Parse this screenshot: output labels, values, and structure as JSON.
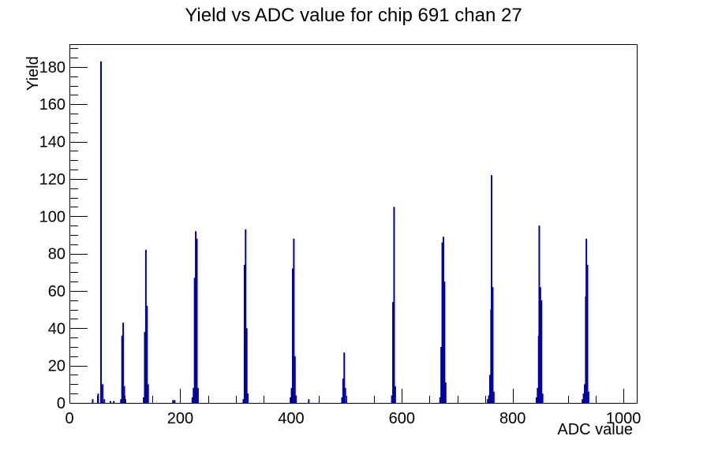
{
  "window": {
    "background": "#ffffff"
  },
  "chart_data": {
    "type": "bar",
    "title": "Yield vs ADC value for chip 691 chan 27",
    "xlabel": "ADC value",
    "ylabel": "Yield",
    "xlim": [
      0,
      1024
    ],
    "ylim": [
      0,
      192.2
    ],
    "x_major_ticks": [
      0,
      200,
      400,
      600,
      800,
      1000
    ],
    "x_minor_step": 50,
    "y_major_ticks": [
      0,
      20,
      40,
      60,
      80,
      100,
      120,
      140,
      160,
      180
    ],
    "y_minor_step": 5,
    "grid": "off",
    "legend": "none",
    "bar_color": "#0000a0",
    "axis_color": "#000000",
    "bins": [
      [
        42,
        2
      ],
      [
        52,
        5
      ],
      [
        57,
        183
      ],
      [
        60,
        10
      ],
      [
        63,
        2
      ],
      [
        74,
        1
      ],
      [
        80,
        1
      ],
      [
        93,
        2
      ],
      [
        95,
        36
      ],
      [
        97,
        43
      ],
      [
        99,
        9
      ],
      [
        101,
        2
      ],
      [
        134,
        3
      ],
      [
        136,
        38
      ],
      [
        138,
        82
      ],
      [
        140,
        52
      ],
      [
        142,
        10
      ],
      [
        187,
        1.5
      ],
      [
        190,
        1.5
      ],
      [
        222,
        3
      ],
      [
        224,
        8
      ],
      [
        226,
        67
      ],
      [
        228,
        92
      ],
      [
        230,
        88
      ],
      [
        232,
        8
      ],
      [
        314,
        2
      ],
      [
        316,
        74
      ],
      [
        318,
        93
      ],
      [
        320,
        40
      ],
      [
        322,
        5
      ],
      [
        399,
        3
      ],
      [
        401,
        8
      ],
      [
        403,
        72
      ],
      [
        405,
        88
      ],
      [
        407,
        25
      ],
      [
        409,
        4
      ],
      [
        432,
        2
      ],
      [
        492,
        3
      ],
      [
        494,
        13
      ],
      [
        496,
        27
      ],
      [
        498,
        8
      ],
      [
        582,
        4
      ],
      [
        584,
        54
      ],
      [
        586,
        105
      ],
      [
        588,
        9
      ],
      [
        669,
        3
      ],
      [
        671,
        30
      ],
      [
        673,
        86
      ],
      [
        675,
        89
      ],
      [
        677,
        65
      ],
      [
        679,
        11
      ],
      [
        755,
        2
      ],
      [
        757,
        4
      ],
      [
        759,
        15
      ],
      [
        761,
        50
      ],
      [
        762,
        122
      ],
      [
        764,
        62
      ],
      [
        766,
        6
      ],
      [
        843,
        3
      ],
      [
        845,
        8
      ],
      [
        847,
        36
      ],
      [
        848,
        95
      ],
      [
        850,
        62
      ],
      [
        852,
        55
      ],
      [
        854,
        5
      ],
      [
        926,
        2
      ],
      [
        928,
        5
      ],
      [
        930,
        10
      ],
      [
        932,
        57
      ],
      [
        933,
        88
      ],
      [
        935,
        74
      ],
      [
        937,
        6
      ]
    ]
  }
}
